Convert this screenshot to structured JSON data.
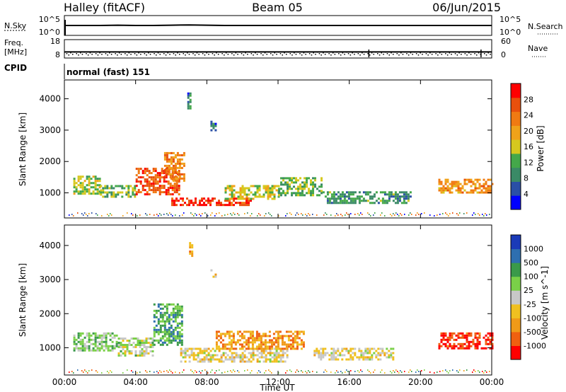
{
  "header": {
    "station": "Halley (fitACF)",
    "beam": "Beam 05",
    "date": "06/Jun/2015"
  },
  "chart_data": [
    {
      "type": "line",
      "panel": "nsky-nsearch",
      "left_label": "N.Sky",
      "right_label": "N.Search",
      "left_ticks": [
        "10^5",
        "10^0"
      ],
      "right_ticks": [
        "10^5",
        "10^0"
      ],
      "series": [
        {
          "values": [
            3.0,
            3.0,
            3.0,
            3.1,
            3.0,
            3.0,
            3.1,
            3.2,
            3.1,
            3.0,
            3.0,
            3.0,
            3.0,
            3.0,
            3.0,
            3.0,
            3.0,
            3.0,
            3.0,
            3.0,
            3.0,
            3.0,
            3.0,
            3.0,
            3.0
          ]
        }
      ]
    },
    {
      "type": "scatter",
      "panel": "frequency-nave",
      "left_label": [
        "Freq.",
        "[MHz]"
      ],
      "right_label": "Nave",
      "left_ticks": [
        "18",
        "8"
      ],
      "right_ticks": [
        "60",
        "0"
      ],
      "series": [
        {
          "values": [
            11,
            11,
            11,
            11,
            11,
            11,
            11,
            11,
            11,
            11,
            11,
            11,
            11,
            11,
            11,
            11,
            11,
            11,
            11,
            11,
            11,
            11,
            11,
            11,
            11
          ]
        }
      ]
    },
    {
      "type": "table",
      "panel": "cpid",
      "left_label": "CPID",
      "program": "normal (fast) 151"
    },
    {
      "type": "heatmap",
      "panel": "power",
      "ylabel": "Slant Range [km]",
      "ylim": [
        200,
        4600
      ],
      "yticks": [
        "4000",
        "3000",
        "2000",
        "1000"
      ],
      "colorbar_label": "Power [dB]",
      "colorbar_ticks": [
        "28",
        "24",
        "20",
        "16",
        "12",
        "8",
        "4"
      ],
      "colorbar_colors": [
        "#0000ff",
        "#2a4fa6",
        "#3a8a66",
        "#44a84a",
        "#d6c81e",
        "#f0a21a",
        "#f07a12",
        "#e8500c",
        "#ff0000"
      ],
      "echoes": [
        {
          "x": [
            0.5,
            2.0
          ],
          "y": [
            1000,
            1550
          ],
          "level": 0.45
        },
        {
          "x": [
            2.0,
            4.0
          ],
          "y": [
            900,
            1250
          ],
          "level": 0.4
        },
        {
          "x": [
            4.0,
            6.4
          ],
          "y": [
            950,
            1800
          ],
          "level": 0.85
        },
        {
          "x": [
            5.6,
            6.7
          ],
          "y": [
            1400,
            2300
          ],
          "level": 0.75
        },
        {
          "x": [
            6.0,
            10.5
          ],
          "y": [
            600,
            850
          ],
          "level": 0.95
        },
        {
          "x": [
            9.0,
            12.0
          ],
          "y": [
            800,
            1250
          ],
          "level": 0.5
        },
        {
          "x": [
            12.0,
            14.5
          ],
          "y": [
            900,
            1500
          ],
          "level": 0.4
        },
        {
          "x": [
            14.5,
            19.5
          ],
          "y": [
            650,
            1050
          ],
          "level": 0.3
        },
        {
          "x": [
            21.0,
            24.0
          ],
          "y": [
            1000,
            1450
          ],
          "level": 0.7
        },
        {
          "x": [
            8.2,
            8.5
          ],
          "y": [
            3000,
            3300
          ],
          "level": 0.2
        },
        {
          "x": [
            6.9,
            7.1
          ],
          "y": [
            3700,
            4200
          ],
          "level": 0.2
        }
      ]
    },
    {
      "type": "heatmap",
      "panel": "velocity",
      "ylabel": "Slant Range [km]",
      "xlabel": "Time UT",
      "ylim": [
        200,
        4600
      ],
      "yticks": [
        "4000",
        "3000",
        "2000",
        "1000"
      ],
      "xticks": [
        "00:00",
        "04:00",
        "08:00",
        "12:00",
        "16:00",
        "20:00",
        "00:00"
      ],
      "colorbar_label": "Velocity [m s^-1]",
      "colorbar_ticks": [
        "1000",
        "500",
        "100",
        "25",
        "-25",
        "-100",
        "-500",
        "-1000"
      ],
      "colorbar_colors": [
        "#ff0000",
        "#f06010",
        "#f09a18",
        "#f0c020",
        "#c8c8c8",
        "#7ad048",
        "#3a9a4a",
        "#2e6fb0",
        "#1a3ab8"
      ],
      "echoes": [
        {
          "x": [
            0.5,
            3.0
          ],
          "y": [
            900,
            1450
          ],
          "level": 0.62
        },
        {
          "x": [
            3.0,
            5.0
          ],
          "y": [
            800,
            1300
          ],
          "level": 0.55
        },
        {
          "x": [
            5.0,
            6.6
          ],
          "y": [
            1100,
            2300
          ],
          "level": 0.72
        },
        {
          "x": [
            6.5,
            12.5
          ],
          "y": [
            600,
            1000
          ],
          "level": 0.45
        },
        {
          "x": [
            8.5,
            13.5
          ],
          "y": [
            1000,
            1500
          ],
          "level": 0.25
        },
        {
          "x": [
            14.0,
            18.5
          ],
          "y": [
            650,
            1000
          ],
          "level": 0.45
        },
        {
          "x": [
            21.0,
            24.0
          ],
          "y": [
            1000,
            1450
          ],
          "level": 0.05
        },
        {
          "x": [
            8.2,
            8.5
          ],
          "y": [
            3050,
            3300
          ],
          "level": 0.35
        },
        {
          "x": [
            7.0,
            7.2
          ],
          "y": [
            3700,
            4100
          ],
          "level": 0.3
        }
      ]
    }
  ]
}
